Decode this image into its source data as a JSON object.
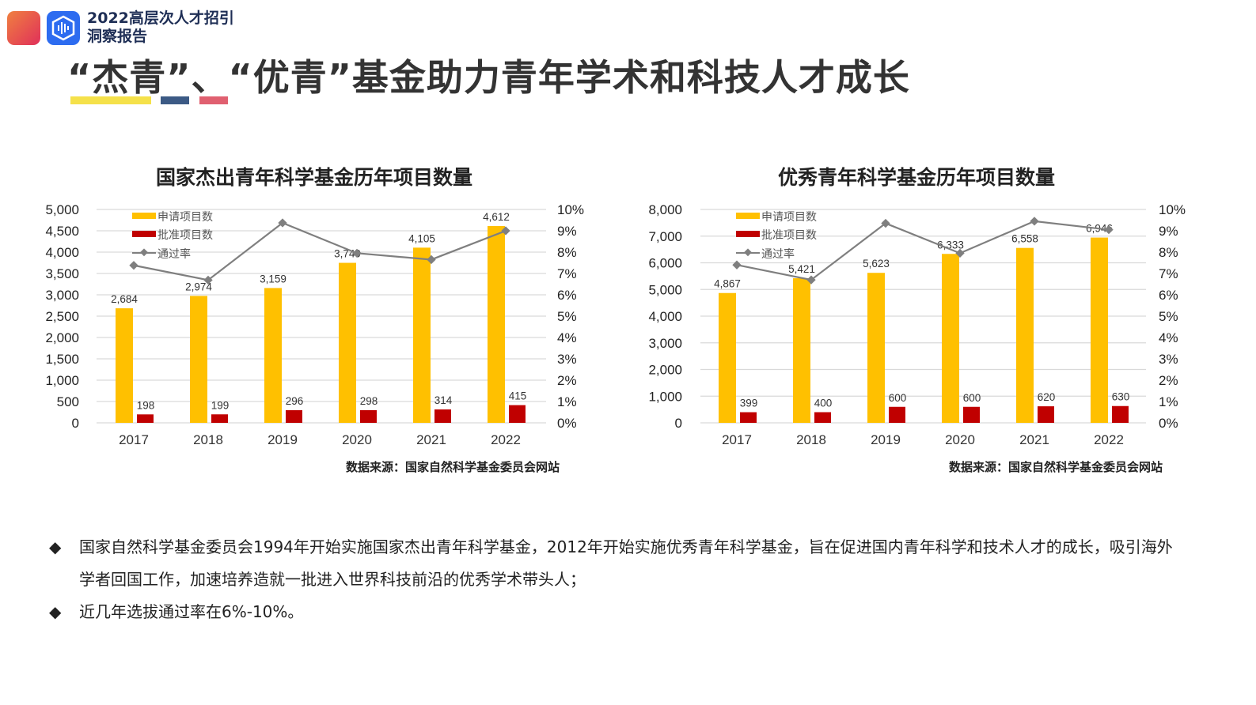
{
  "header": {
    "brand_line1": "2022高层次人才招引",
    "brand_line2": "洞察报告",
    "title": "“杰青”、“优青”基金助力青年学术和科技人才成长"
  },
  "colors": {
    "applied": "#FFC000",
    "approved": "#C00000",
    "rate": "#7F7F7F",
    "grid": "#D9D9D9"
  },
  "chart_data": [
    {
      "type": "bar",
      "title": "国家杰出青年科学基金历年项目数量",
      "categories": [
        "2017",
        "2018",
        "2019",
        "2020",
        "2021",
        "2022"
      ],
      "ylim": [
        0,
        5000
      ],
      "yticks": [
        "0",
        "500",
        "1,000",
        "1,500",
        "2,000",
        "2,500",
        "3,000",
        "3,500",
        "4,000",
        "4,500",
        "5,000"
      ],
      "y2lim": [
        0,
        10
      ],
      "y2ticks": [
        "0%",
        "1%",
        "2%",
        "3%",
        "4%",
        "5%",
        "6%",
        "7%",
        "8%",
        "9%",
        "10%"
      ],
      "series": [
        {
          "name": "申请项目数",
          "type": "bar",
          "values": [
            2684,
            2974,
            3159,
            3749,
            4105,
            4612
          ],
          "labels": [
            "2,684",
            "2,974",
            "3,159",
            "3,749",
            "4,105",
            "4,612"
          ]
        },
        {
          "name": "批准项目数",
          "type": "bar",
          "values": [
            198,
            199,
            296,
            298,
            314,
            415
          ],
          "labels": [
            "198",
            "199",
            "296",
            "298",
            "314",
            "415"
          ]
        },
        {
          "name": "通过率",
          "type": "line",
          "axis": "right",
          "values": [
            7.38,
            6.69,
            9.37,
            7.95,
            7.65,
            9.0
          ]
        }
      ],
      "grid": true,
      "legend": "top-left",
      "source": "数据来源：国家自然科学基金委员会网站"
    },
    {
      "type": "bar",
      "title": "优秀青年科学基金历年项目数量",
      "categories": [
        "2017",
        "2018",
        "2019",
        "2020",
        "2021",
        "2022"
      ],
      "ylim": [
        0,
        8000
      ],
      "yticks": [
        "0",
        "1,000",
        "2,000",
        "3,000",
        "4,000",
        "5,000",
        "6,000",
        "7,000",
        "8,000"
      ],
      "y2lim": [
        0,
        10
      ],
      "y2ticks": [
        "0%",
        "1%",
        "2%",
        "3%",
        "4%",
        "5%",
        "6%",
        "7%",
        "8%",
        "9%",
        "10%"
      ],
      "series": [
        {
          "name": "申请项目数",
          "type": "bar",
          "values": [
            4867,
            5421,
            5623,
            6333,
            6558,
            6946
          ],
          "labels": [
            "4,867",
            "5,421",
            "5,623",
            "6,333",
            "6,558",
            "6,946"
          ]
        },
        {
          "name": "批准项目数",
          "type": "bar",
          "values": [
            399,
            400,
            600,
            600,
            620,
            630
          ],
          "labels": [
            "399",
            "400",
            "600",
            "600",
            "620",
            "630"
          ]
        },
        {
          "name": "通过率",
          "type": "line",
          "axis": "right",
          "values": [
            7.4,
            6.7,
            9.35,
            7.95,
            9.45,
            9.05
          ]
        }
      ],
      "grid": true,
      "legend": "top-left",
      "source": "数据来源：国家自然科学基金委员会网站"
    }
  ],
  "bullets": [
    "国家自然科学基金委员会1994年开始实施国家杰出青年科学基金，2012年开始实施优秀青年科学基金，旨在促进国内青年科学和技术人才的成长，吸引海外学者回国工作，加速培养造就一批进入世界科技前沿的优秀学术带头人；",
    "近几年选拔通过率在6%-10%。"
  ],
  "bullet_symbol": "◆"
}
